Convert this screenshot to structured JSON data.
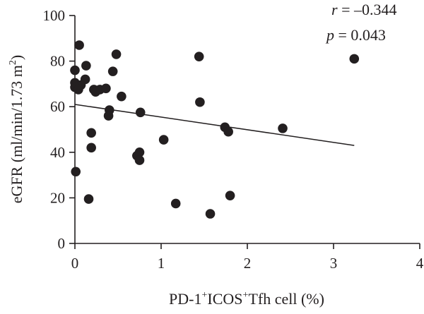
{
  "chart_data": {
    "type": "scatter",
    "title": "",
    "xlabel": {
      "base": "PD-1",
      "sup1": "+",
      "mid": "ICOS",
      "sup2": "+",
      "tail": "Tfh cell (%)"
    },
    "ylabel": {
      "main": "eGFR (ml/min/1.73 m",
      "sup": "2",
      "close": ")"
    },
    "xlim": [
      0,
      4
    ],
    "ylim": [
      0,
      100
    ],
    "xticks": [
      0,
      1,
      2,
      3,
      4
    ],
    "yticks": [
      0,
      20,
      40,
      60,
      80,
      100
    ],
    "grid": false,
    "annotation": {
      "r_label": "r",
      "r_text": " = –0.344",
      "p_label": "p",
      "p_text": " = 0.043"
    },
    "regression_line": {
      "x": [
        0,
        3.24
      ],
      "y": [
        61,
        43
      ]
    },
    "points": [
      {
        "x": 0.05,
        "y": 87
      },
      {
        "x": 0.0,
        "y": 76
      },
      {
        "x": 0.13,
        "y": 78
      },
      {
        "x": 0.48,
        "y": 83
      },
      {
        "x": 0.44,
        "y": 75.5
      },
      {
        "x": 0.12,
        "y": 72
      },
      {
        "x": 0.0,
        "y": 70.5
      },
      {
        "x": 0.07,
        "y": 69.5
      },
      {
        "x": 0.0,
        "y": 68.5
      },
      {
        "x": 0.04,
        "y": 67.5
      },
      {
        "x": 0.22,
        "y": 67.5
      },
      {
        "x": 0.24,
        "y": 66.5
      },
      {
        "x": 0.29,
        "y": 67.5
      },
      {
        "x": 0.36,
        "y": 68
      },
      {
        "x": 0.54,
        "y": 64.5
      },
      {
        "x": 0.4,
        "y": 58.5
      },
      {
        "x": 0.39,
        "y": 56
      },
      {
        "x": 0.76,
        "y": 57.5
      },
      {
        "x": 0.19,
        "y": 48.5
      },
      {
        "x": 0.19,
        "y": 42
      },
      {
        "x": 0.72,
        "y": 38.5
      },
      {
        "x": 0.75,
        "y": 40
      },
      {
        "x": 0.75,
        "y": 36.5
      },
      {
        "x": 1.03,
        "y": 45.5
      },
      {
        "x": 0.01,
        "y": 31.5
      },
      {
        "x": 0.16,
        "y": 19.5
      },
      {
        "x": 1.17,
        "y": 17.5
      },
      {
        "x": 1.44,
        "y": 82
      },
      {
        "x": 1.45,
        "y": 62
      },
      {
        "x": 1.74,
        "y": 51
      },
      {
        "x": 1.78,
        "y": 49
      },
      {
        "x": 1.8,
        "y": 21
      },
      {
        "x": 1.57,
        "y": 13
      },
      {
        "x": 2.41,
        "y": 50.5
      },
      {
        "x": 3.24,
        "y": 81
      }
    ]
  }
}
